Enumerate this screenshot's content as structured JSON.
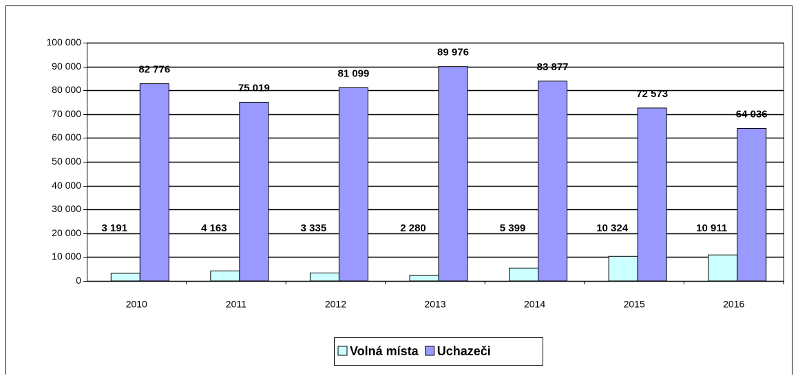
{
  "chart_data": {
    "type": "bar",
    "categories": [
      "2010",
      "2011",
      "2012",
      "2013",
      "2014",
      "2015",
      "2016"
    ],
    "series": [
      {
        "name": "Volná místa",
        "color": "#ccffff",
        "values": [
          3191,
          4163,
          3335,
          2280,
          5399,
          10324,
          10911
        ],
        "value_labels": [
          "3 191",
          "4 163",
          "3 335",
          "2 280",
          "5 399",
          "10 324",
          "10 911"
        ]
      },
      {
        "name": "Uchazeči",
        "color": "#9999ff",
        "values": [
          82776,
          75019,
          81099,
          89976,
          83877,
          72573,
          64036
        ],
        "value_labels": [
          "82 776",
          "75 019",
          "81 099",
          "89 976",
          "83 877",
          "72 573",
          "64 036"
        ]
      }
    ],
    "ylim": [
      0,
      100000
    ],
    "yticks": [
      {
        "value": 0,
        "label": "0"
      },
      {
        "value": 10000,
        "label": "10 000"
      },
      {
        "value": 20000,
        "label": "20 000"
      },
      {
        "value": 30000,
        "label": "30 000"
      },
      {
        "value": 40000,
        "label": "40 000"
      },
      {
        "value": 50000,
        "label": "50 000"
      },
      {
        "value": 60000,
        "label": "60 000"
      },
      {
        "value": 70000,
        "label": "70 000"
      },
      {
        "value": 80000,
        "label": "80 000"
      },
      {
        "value": 90000,
        "label": "90 000"
      },
      {
        "value": 100000,
        "label": "100 000"
      }
    ],
    "grid": true,
    "legend": "bottom"
  }
}
